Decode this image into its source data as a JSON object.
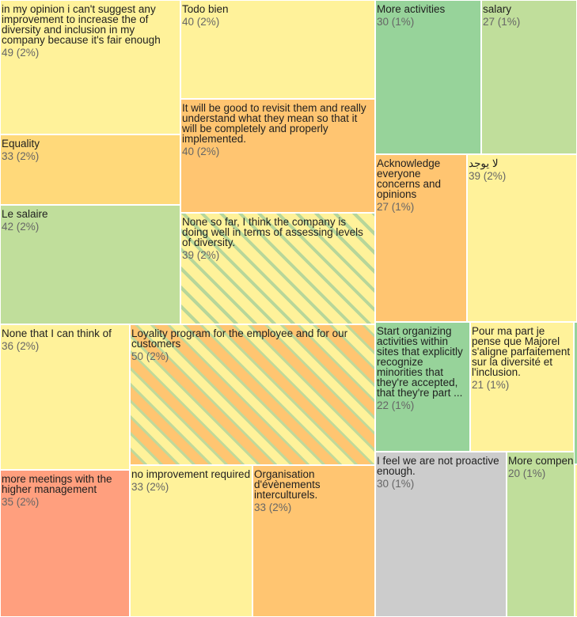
{
  "chart_data": {
    "type": "treemap",
    "items": [
      {
        "label": "in my opinion i can't suggest any improvement to increase the of diversity and inclusion in my company because it's fair enough",
        "value": 49,
        "percent": "2%",
        "color": "#fff29a"
      },
      {
        "label": "Todo bien",
        "value": 40,
        "percent": "2%",
        "color": "#fff29a"
      },
      {
        "label": "More activities",
        "value": 30,
        "percent": "1%",
        "color": "#97d39a"
      },
      {
        "label": "salary",
        "value": 27,
        "percent": "1%",
        "color": "#c0de9b"
      },
      {
        "label": "It will be good to revisit them and really understand what they mean so that it will be completely and properly implemented.",
        "value": 40,
        "percent": "2%",
        "color": "#ffc571"
      },
      {
        "label": "Equality",
        "value": 33,
        "percent": "2%",
        "color": "#ffd97a"
      },
      {
        "label": "Acknowledge everyone concerns and opinions",
        "value": 27,
        "percent": "1%",
        "color": "#ffc571"
      },
      {
        "label": "لا يوجد",
        "value": 39,
        "percent": "2%",
        "color": "#fff29a"
      },
      {
        "label": "Le salaire",
        "value": 42,
        "percent": "2%",
        "color": "#c0de9b"
      },
      {
        "label": "None so far, I think the company is doing well in terms of assessing levels of diversity.",
        "value": 39,
        "percent": "2%",
        "color": "#fff29a",
        "pattern": "striped"
      },
      {
        "label": "None that I can think of",
        "value": 36,
        "percent": "2%",
        "color": "#fff29a"
      },
      {
        "label": "Loyality program for the employee and for our customers",
        "value": 50,
        "percent": "2%",
        "color": "#ffc571",
        "pattern": "striped"
      },
      {
        "label": "Start organizing activities within sites that explicitly recognize minorities that they're accepted, that they're part ...",
        "value": 22,
        "percent": "1%",
        "color": "#97d39a"
      },
      {
        "label": "Pour ma part je pense que Majorel s'aligne parfaitement sur la diversité et l'inclusion.",
        "value": 21,
        "percent": "1%",
        "color": "#fff29a"
      },
      {
        "label": "I feel we are not proactive enough.",
        "value": 30,
        "percent": "1%",
        "color": "#cccccc"
      },
      {
        "label": "More compensation",
        "value": 20,
        "percent": "1%",
        "color": "#c0de9b"
      },
      {
        "label": "more meetings with the higher management",
        "value": 35,
        "percent": "2%",
        "color": "#ff9f7e"
      },
      {
        "label": "no improvement required",
        "value": 33,
        "percent": "2%",
        "color": "#fff29a"
      },
      {
        "label": "Organisation d'évènements interculturels.",
        "value": 33,
        "percent": "2%",
        "color": "#ffc571"
      }
    ]
  }
}
